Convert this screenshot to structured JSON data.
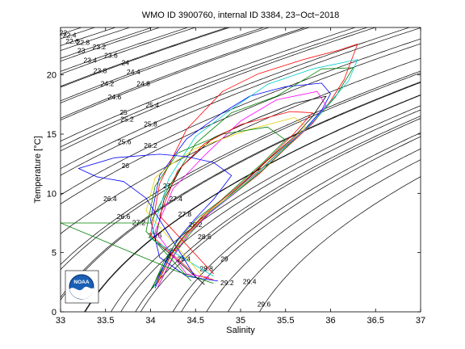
{
  "chart_data": {
    "type": "line",
    "title": "WMO ID 3900760, internal ID 3384, 23−Oct−2018",
    "xlabel": "Salinity",
    "ylabel": "Temperature [°C]",
    "xlim": [
      33,
      37
    ],
    "ylim": [
      0,
      24
    ],
    "xticks": [
      "33",
      "33.5",
      "34",
      "34.5",
      "35",
      "35.5",
      "36",
      "36.5",
      "37"
    ],
    "yticks": [
      "0",
      "5",
      "10",
      "15",
      "20"
    ],
    "grid": false,
    "logo": "NOAA",
    "density_contours": {
      "color": "#000000",
      "levels": [
        {
          "label": "22",
          "s": 33.03,
          "t": 23.5
        },
        {
          "label": "22.4",
          "s": 33.1,
          "t": 23.3
        },
        {
          "label": "22.6",
          "s": 33.13,
          "t": 22.8
        },
        {
          "label": "22.8",
          "s": 33.25,
          "t": 22.7
        },
        {
          "label": "23",
          "s": 33.23,
          "t": 22.0
        },
        {
          "label": "23.2",
          "s": 33.43,
          "t": 22.3
        },
        {
          "label": "23.4",
          "s": 33.33,
          "t": 21.2
        },
        {
          "label": "23.6",
          "s": 33.56,
          "t": 21.6
        },
        {
          "label": "23.8",
          "s": 33.44,
          "t": 20.3
        },
        {
          "label": "24",
          "s": 33.72,
          "t": 21.0
        },
        {
          "label": "24.2",
          "s": 33.52,
          "t": 19.2
        },
        {
          "label": "24.4",
          "s": 33.81,
          "t": 20.2
        },
        {
          "label": "24.6",
          "s": 33.6,
          "t": 18.1
        },
        {
          "label": "24.8",
          "s": 33.92,
          "t": 19.2
        },
        {
          "label": "25",
          "s": 33.7,
          "t": 16.8
        },
        {
          "label": "25.2",
          "s": 33.74,
          "t": 16.2
        },
        {
          "label": "25.4",
          "s": 34.02,
          "t": 17.4
        },
        {
          "label": "25.6",
          "s": 33.71,
          "t": 14.3
        },
        {
          "label": "25.8",
          "s": 34.0,
          "t": 15.8
        },
        {
          "label": "26",
          "s": 33.72,
          "t": 12.3
        },
        {
          "label": "26.2",
          "s": 34.0,
          "t": 14.0
        },
        {
          "label": "26.4",
          "s": 33.55,
          "t": 9.5
        },
        {
          "label": "26.6",
          "s": 33.7,
          "t": 8.0
        },
        {
          "label": "27",
          "s": 34.18,
          "t": 10.6
        },
        {
          "label": "27.2",
          "s": 33.87,
          "t": 7.5
        },
        {
          "label": "27.4",
          "s": 34.28,
          "t": 9.5
        },
        {
          "label": "27.6",
          "s": 34.05,
          "t": 6.4
        },
        {
          "label": "27.8",
          "s": 34.38,
          "t": 8.2
        },
        {
          "label": "28",
          "s": 34.25,
          "t": 5.1
        },
        {
          "label": "28.2",
          "s": 34.5,
          "t": 7.3
        },
        {
          "label": "28.4",
          "s": 34.37,
          "t": 4.4
        },
        {
          "label": "28.6",
          "s": 34.6,
          "t": 6.3
        },
        {
          "label": "28.8",
          "s": 34.62,
          "t": 3.6
        },
        {
          "label": "29",
          "s": 34.82,
          "t": 4.4
        },
        {
          "label": "29.2",
          "s": 34.85,
          "t": 2.4
        },
        {
          "label": "29.4",
          "s": 35.1,
          "t": 2.5
        },
        {
          "label": "29.6",
          "s": 35.26,
          "t": 0.6
        }
      ]
    },
    "series": [
      {
        "color": "#0000ff",
        "s": [
          34.05,
          34.2,
          34.35,
          34.6,
          34.85,
          35.1,
          35.4,
          35.7,
          35.9,
          36.0,
          35.9,
          35.5,
          35.1,
          34.8,
          34.4,
          34.1,
          34.0,
          34.1,
          34.4,
          34.75
        ],
        "t": [
          2.0,
          4.6,
          6.2,
          8.0,
          9.5,
          11.2,
          13.3,
          15.3,
          17.0,
          18.4,
          19.3,
          19.0,
          18.2,
          16.8,
          14.6,
          11.5,
          7.8,
          4.6,
          3.0,
          2.6
        ]
      },
      {
        "color": "#ff0000",
        "s": [
          34.05,
          34.22,
          34.4,
          34.65,
          34.9,
          35.2,
          35.5,
          35.8,
          36.0,
          36.15,
          36.3,
          36.1,
          35.7,
          35.2,
          34.8,
          34.4,
          34.1,
          34.0,
          34.5,
          34.7
        ],
        "t": [
          2.2,
          4.8,
          6.5,
          8.4,
          9.8,
          11.6,
          13.8,
          15.9,
          17.8,
          19.6,
          22.6,
          22.1,
          21.3,
          20.1,
          18.6,
          15.4,
          10.8,
          6.5,
          3.1,
          2.7
        ]
      },
      {
        "color": "#008000",
        "s": [
          34.1,
          34.28,
          34.45,
          34.7,
          34.95,
          35.25,
          35.55,
          35.85,
          36.05,
          36.25,
          35.9,
          35.4,
          34.9,
          34.5,
          34.2,
          34.0,
          33.0,
          34.3,
          34.7
        ],
        "t": [
          2.4,
          5.0,
          6.7,
          8.7,
          10.1,
          12.0,
          14.2,
          16.4,
          18.1,
          20.6,
          20.5,
          18.2,
          16.8,
          14.2,
          10.5,
          7.5,
          7.5,
          3.4,
          2.4
        ]
      },
      {
        "color": "#000000",
        "s": [
          34.0,
          34.18,
          34.33,
          34.55,
          34.8,
          35.05,
          35.3,
          35.6,
          35.8,
          35.95,
          35.6,
          35.2,
          34.7,
          34.35,
          34.15,
          34.05,
          34.6
        ],
        "t": [
          1.8,
          4.4,
          6.0,
          7.8,
          9.3,
          11.0,
          12.8,
          14.8,
          16.5,
          18.2,
          17.6,
          16.4,
          14.7,
          12.3,
          9.5,
          6.0,
          2.3
        ]
      },
      {
        "color": "#ff00ff",
        "s": [
          34.08,
          34.25,
          34.42,
          34.68,
          34.92,
          35.18,
          35.48,
          35.78,
          35.95,
          35.85,
          35.4,
          35.0,
          34.6,
          34.25,
          34.05,
          34.4,
          34.65
        ],
        "t": [
          2.1,
          4.7,
          6.6,
          8.5,
          9.9,
          11.7,
          13.9,
          15.8,
          17.4,
          18.6,
          17.9,
          16.1,
          13.2,
          10.4,
          6.8,
          3.2,
          2.9
        ]
      },
      {
        "color": "#00cccc",
        "s": [
          34.03,
          34.2,
          34.38,
          34.62,
          34.88,
          35.15,
          35.45,
          35.75,
          35.95,
          36.2,
          36.3,
          35.8,
          35.3,
          34.9,
          34.5,
          34.2,
          34.0,
          34.7
        ],
        "t": [
          2.0,
          4.5,
          6.4,
          8.2,
          9.7,
          11.4,
          13.6,
          15.6,
          17.3,
          19.5,
          21.3,
          20.5,
          19.2,
          17.1,
          14.8,
          11.2,
          6.2,
          3.0
        ]
      },
      {
        "color": "#e0d000",
        "s": [
          34.06,
          34.24,
          34.4,
          34.64,
          34.9,
          35.12,
          35.42,
          35.72,
          35.6,
          35.1,
          34.5,
          34.2,
          34.05,
          33.95,
          34.6
        ],
        "t": [
          2.3,
          4.9,
          6.5,
          8.4,
          9.9,
          11.3,
          13.5,
          15.6,
          16.4,
          15.4,
          13.8,
          12.3,
          11.3,
          8.5,
          2.8
        ]
      },
      {
        "color": "#0000ff",
        "s": [
          34.05,
          34.18,
          34.3,
          34.5,
          34.7,
          34.9,
          34.7,
          34.4,
          34.1,
          33.6,
          33.2,
          33.4,
          33.7,
          33.95,
          34.5
        ],
        "t": [
          2.2,
          4.5,
          6.1,
          7.9,
          9.5,
          11.5,
          12.6,
          13.1,
          13.3,
          13.0,
          12.1,
          11.4,
          11.0,
          9.6,
          2.9
        ]
      },
      {
        "color": "#008000",
        "s": [
          34.02,
          34.15,
          34.3,
          34.52,
          34.78,
          35.0,
          35.25,
          35.5,
          35.3,
          34.8,
          34.3,
          34.05,
          33.95,
          34.45
        ],
        "t": [
          2.0,
          4.3,
          6.0,
          7.9,
          9.4,
          10.9,
          12.6,
          14.5,
          15.6,
          15.0,
          13.4,
          10.6,
          6.8,
          2.6
        ]
      },
      {
        "color": "#ff0000",
        "s": [
          34.08,
          34.22,
          34.36,
          34.58,
          34.82,
          35.08,
          35.35,
          35.6,
          35.8,
          35.55,
          35.0,
          34.6,
          34.3,
          34.1,
          34.7
        ],
        "t": [
          2.4,
          4.7,
          6.3,
          8.1,
          9.6,
          11.3,
          13.2,
          15.1,
          16.8,
          16.9,
          15.8,
          14.2,
          11.9,
          8.1,
          3.2
        ]
      }
    ]
  }
}
